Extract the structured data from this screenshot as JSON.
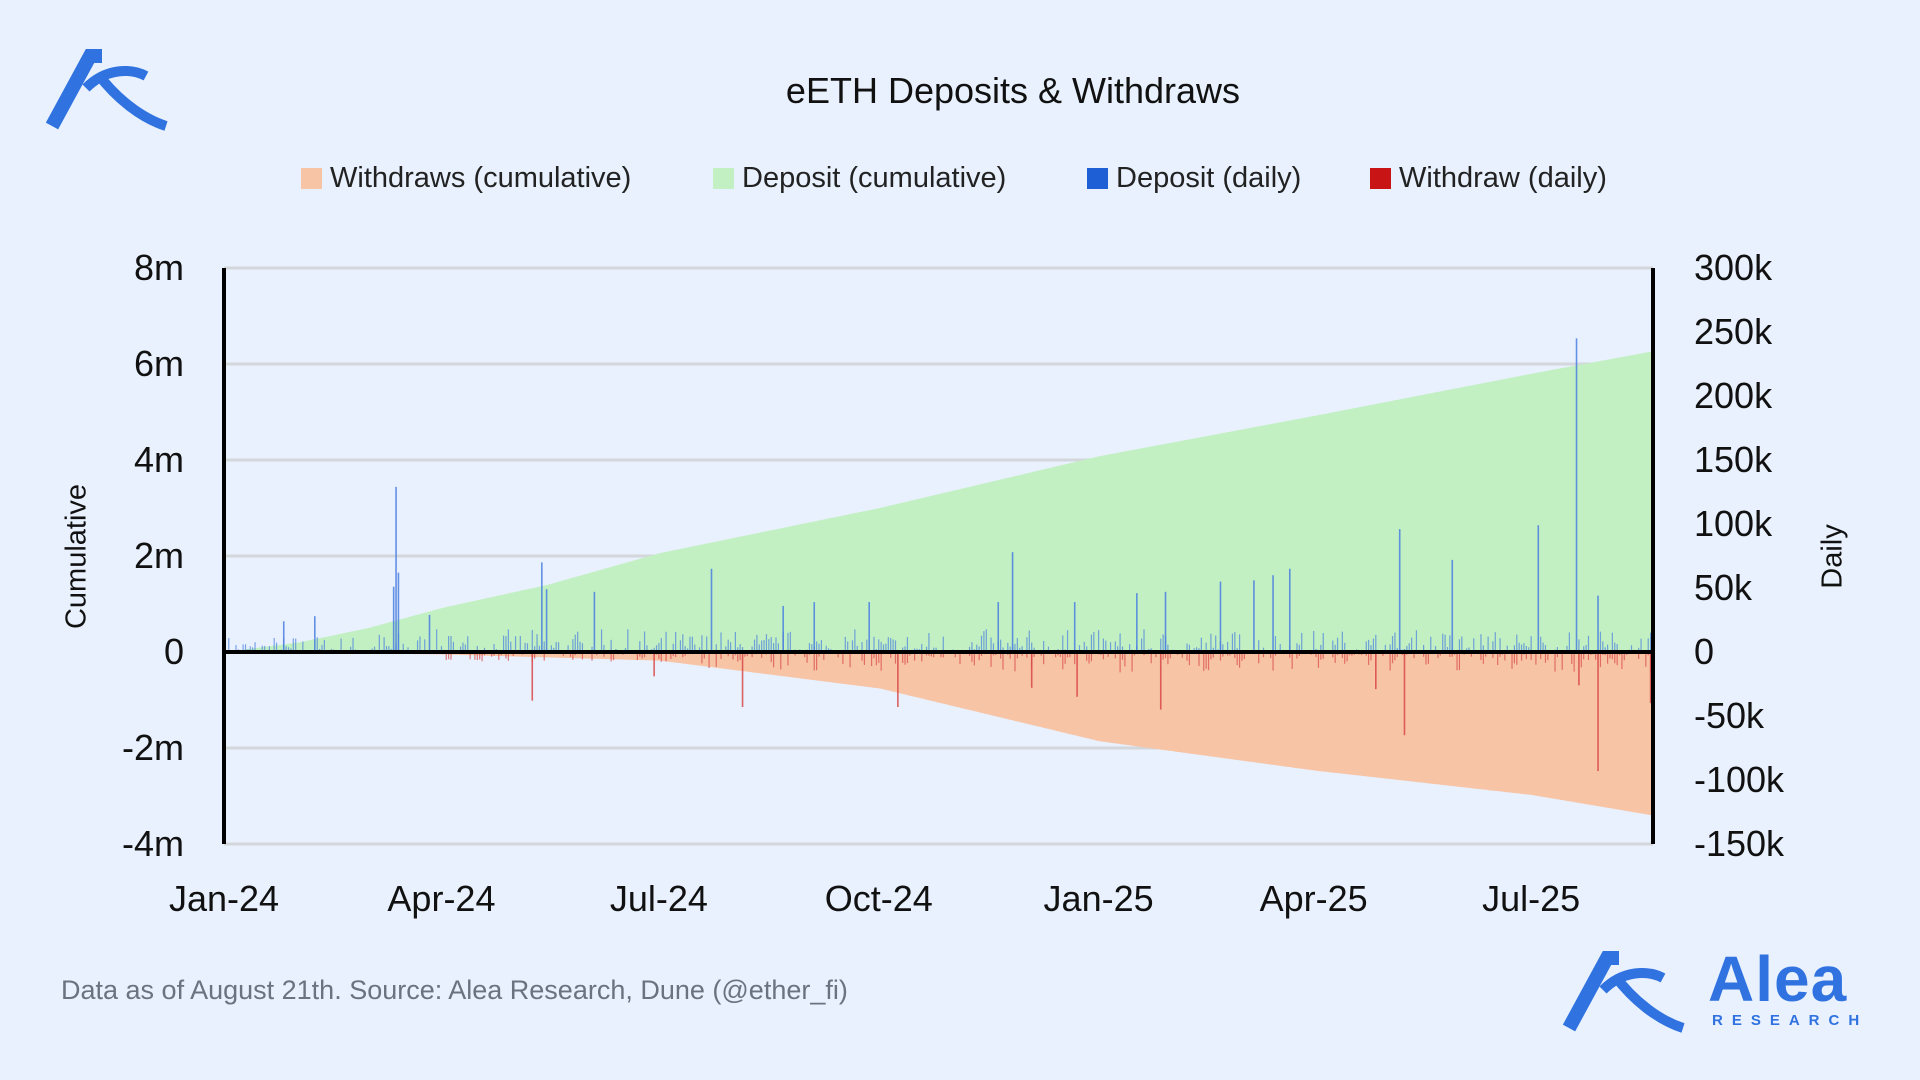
{
  "header": {
    "title": "eETH Deposits & Withdraws"
  },
  "footer": {
    "source": "Data as of August 21th. Source: Alea Research, Dune (@ether_fi)"
  },
  "brand": {
    "name": "Alea",
    "sub": "RESEARCH"
  },
  "colors": {
    "bg": "#e8f1fd",
    "deposit_cum": "#c2f0c2",
    "withdraw_cum": "#f7c4a6",
    "deposit_daily": "#4a7fe0",
    "withdraw_daily": "#d94848",
    "brand": "#2f72e0"
  },
  "chart_data": {
    "type": "bar+area",
    "title": "eETH Deposits & Withdraws",
    "legend": [
      {
        "label": "Withdraws (cumulative)",
        "color": "#f7c4a6"
      },
      {
        "label": "Deposit (cumulative)",
        "color": "#c2f0c2"
      },
      {
        "label": "Deposit (daily)",
        "color": "#1f5fd6"
      },
      {
        "label": "Withdraw (daily)",
        "color": "#c81414"
      }
    ],
    "legend_position": "top",
    "ylabel_left": "Cumulative",
    "ylabel_right": "Daily",
    "xrange": [
      "2024-01-01",
      "2025-08-21"
    ],
    "ylim_left": [
      -4000000,
      8000000
    ],
    "ylim_right": [
      -150000,
      300000
    ],
    "yticks_left": [
      {
        "v": 8000000,
        "label": "8m"
      },
      {
        "v": 6000000,
        "label": "6m"
      },
      {
        "v": 4000000,
        "label": "4m"
      },
      {
        "v": 2000000,
        "label": "2m"
      },
      {
        "v": 0,
        "label": "0"
      },
      {
        "v": -2000000,
        "label": "-2m"
      },
      {
        "v": -4000000,
        "label": "-4m"
      }
    ],
    "yticks_right": [
      {
        "v": 300000,
        "label": "300k"
      },
      {
        "v": 250000,
        "label": "250k"
      },
      {
        "v": 200000,
        "label": "200k"
      },
      {
        "v": 150000,
        "label": "150k"
      },
      {
        "v": 100000,
        "label": "100k"
      },
      {
        "v": 50000,
        "label": "50k"
      },
      {
        "v": 0,
        "label": "0"
      },
      {
        "v": -50000,
        "label": "-50k"
      },
      {
        "v": -100000,
        "label": "-100k"
      },
      {
        "v": -150000,
        "label": "-150k"
      }
    ],
    "xticks": [
      {
        "date": "2024-01-01",
        "label": "Jan-24"
      },
      {
        "date": "2024-04-01",
        "label": "Apr-24"
      },
      {
        "date": "2024-07-01",
        "label": "Jul-24"
      },
      {
        "date": "2024-10-01",
        "label": "Oct-24"
      },
      {
        "date": "2025-01-01",
        "label": "Jan-25"
      },
      {
        "date": "2025-04-01",
        "label": "Apr-25"
      },
      {
        "date": "2025-07-01",
        "label": "Jul-25"
      }
    ],
    "grid": true,
    "deposit_cumulative": [
      [
        "2024-01-01",
        0
      ],
      [
        "2024-02-01",
        0.2
      ],
      [
        "2024-03-01",
        0.5
      ],
      [
        "2024-04-01",
        0.92
      ],
      [
        "2024-05-15",
        1.4
      ],
      [
        "2024-07-01",
        2.06
      ],
      [
        "2024-10-01",
        3.0
      ],
      [
        "2025-01-01",
        4.08
      ],
      [
        "2025-04-01",
        4.92
      ],
      [
        "2025-07-01",
        5.8
      ],
      [
        "2025-08-21",
        6.27
      ]
    ],
    "withdraw_cumulative": [
      [
        "2024-01-01",
        0
      ],
      [
        "2024-04-01",
        -0.05
      ],
      [
        "2024-07-01",
        -0.18
      ],
      [
        "2024-10-01",
        -0.76
      ],
      [
        "2025-01-01",
        -1.86
      ],
      [
        "2025-04-01",
        -2.47
      ],
      [
        "2025-07-01",
        -2.98
      ],
      [
        "2025-08-21",
        -3.41
      ]
    ],
    "cumulative_unit": "millions",
    "deposit_daily_spikes": [
      [
        25,
        24
      ],
      [
        38,
        28
      ],
      [
        71,
        51
      ],
      [
        72,
        129
      ],
      [
        73,
        62
      ],
      [
        86,
        29
      ],
      [
        133,
        70
      ],
      [
        135,
        49
      ],
      [
        155,
        47
      ],
      [
        204,
        65
      ],
      [
        234,
        36
      ],
      [
        247,
        39
      ],
      [
        270,
        39
      ],
      [
        324,
        39
      ],
      [
        330,
        78
      ],
      [
        356,
        39
      ],
      [
        382,
        46
      ],
      [
        394,
        47
      ],
      [
        417,
        55
      ],
      [
        431,
        56
      ],
      [
        439,
        60
      ],
      [
        446,
        65
      ],
      [
        492,
        96
      ],
      [
        514,
        72
      ],
      [
        550,
        99
      ],
      [
        566,
        245
      ],
      [
        575,
        44
      ]
    ],
    "withdraw_daily_spikes": [
      [
        129,
        -38
      ],
      [
        180,
        -19
      ],
      [
        217,
        -43
      ],
      [
        282,
        -43
      ],
      [
        338,
        -28
      ],
      [
        357,
        -35
      ],
      [
        392,
        -45
      ],
      [
        482,
        -29
      ],
      [
        494,
        -65
      ],
      [
        567,
        -26
      ],
      [
        575,
        -93
      ],
      [
        597,
        -40
      ]
    ],
    "daily_unit": "thousands (day offset from 2024-01-01, value)"
  }
}
